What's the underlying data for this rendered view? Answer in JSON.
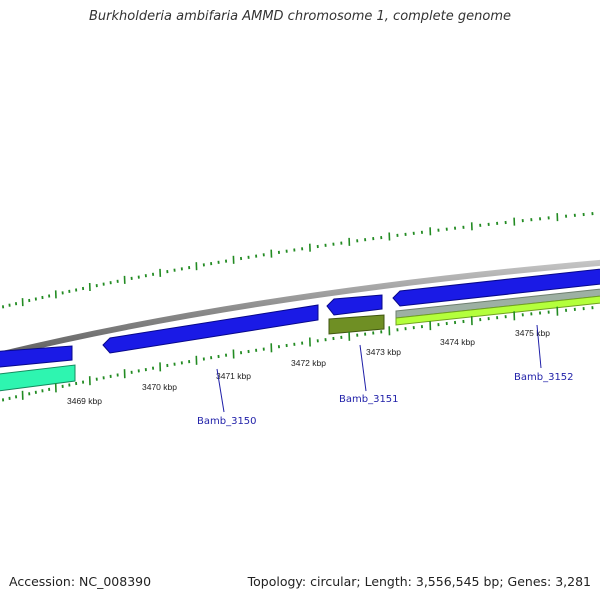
{
  "title": "Burkholderia ambifaria AMMD chromosome 1, complete genome",
  "ticks": [
    {
      "label": "3469 kbp"
    },
    {
      "label": "3470 kbp"
    },
    {
      "label": "3471 kbp"
    },
    {
      "label": "3472 kbp"
    },
    {
      "label": "3473 kbp"
    },
    {
      "label": "3474 kbp"
    },
    {
      "label": "3475 kbp"
    }
  ],
  "genes": [
    {
      "name": "Bamb_3150"
    },
    {
      "name": "Bamb_3151"
    },
    {
      "name": "Bamb_3152"
    }
  ],
  "footer": {
    "accession": "Accession: NC_008390",
    "topology": "Topology: circular; Length: 3,556,545 bp; Genes: 3,281"
  },
  "colors": {
    "forward_cds": "#1a1ae6",
    "forward_cds_dark": "#08088a",
    "reverse_cds_teal": "#2ef5b0",
    "reverse_cds_olive": "#6f8f24",
    "reverse_cds_lime": "#b4ff3c",
    "backbone": "#8c8c8c",
    "tick": "#228b22",
    "gene_label": "#1f1fa8"
  }
}
